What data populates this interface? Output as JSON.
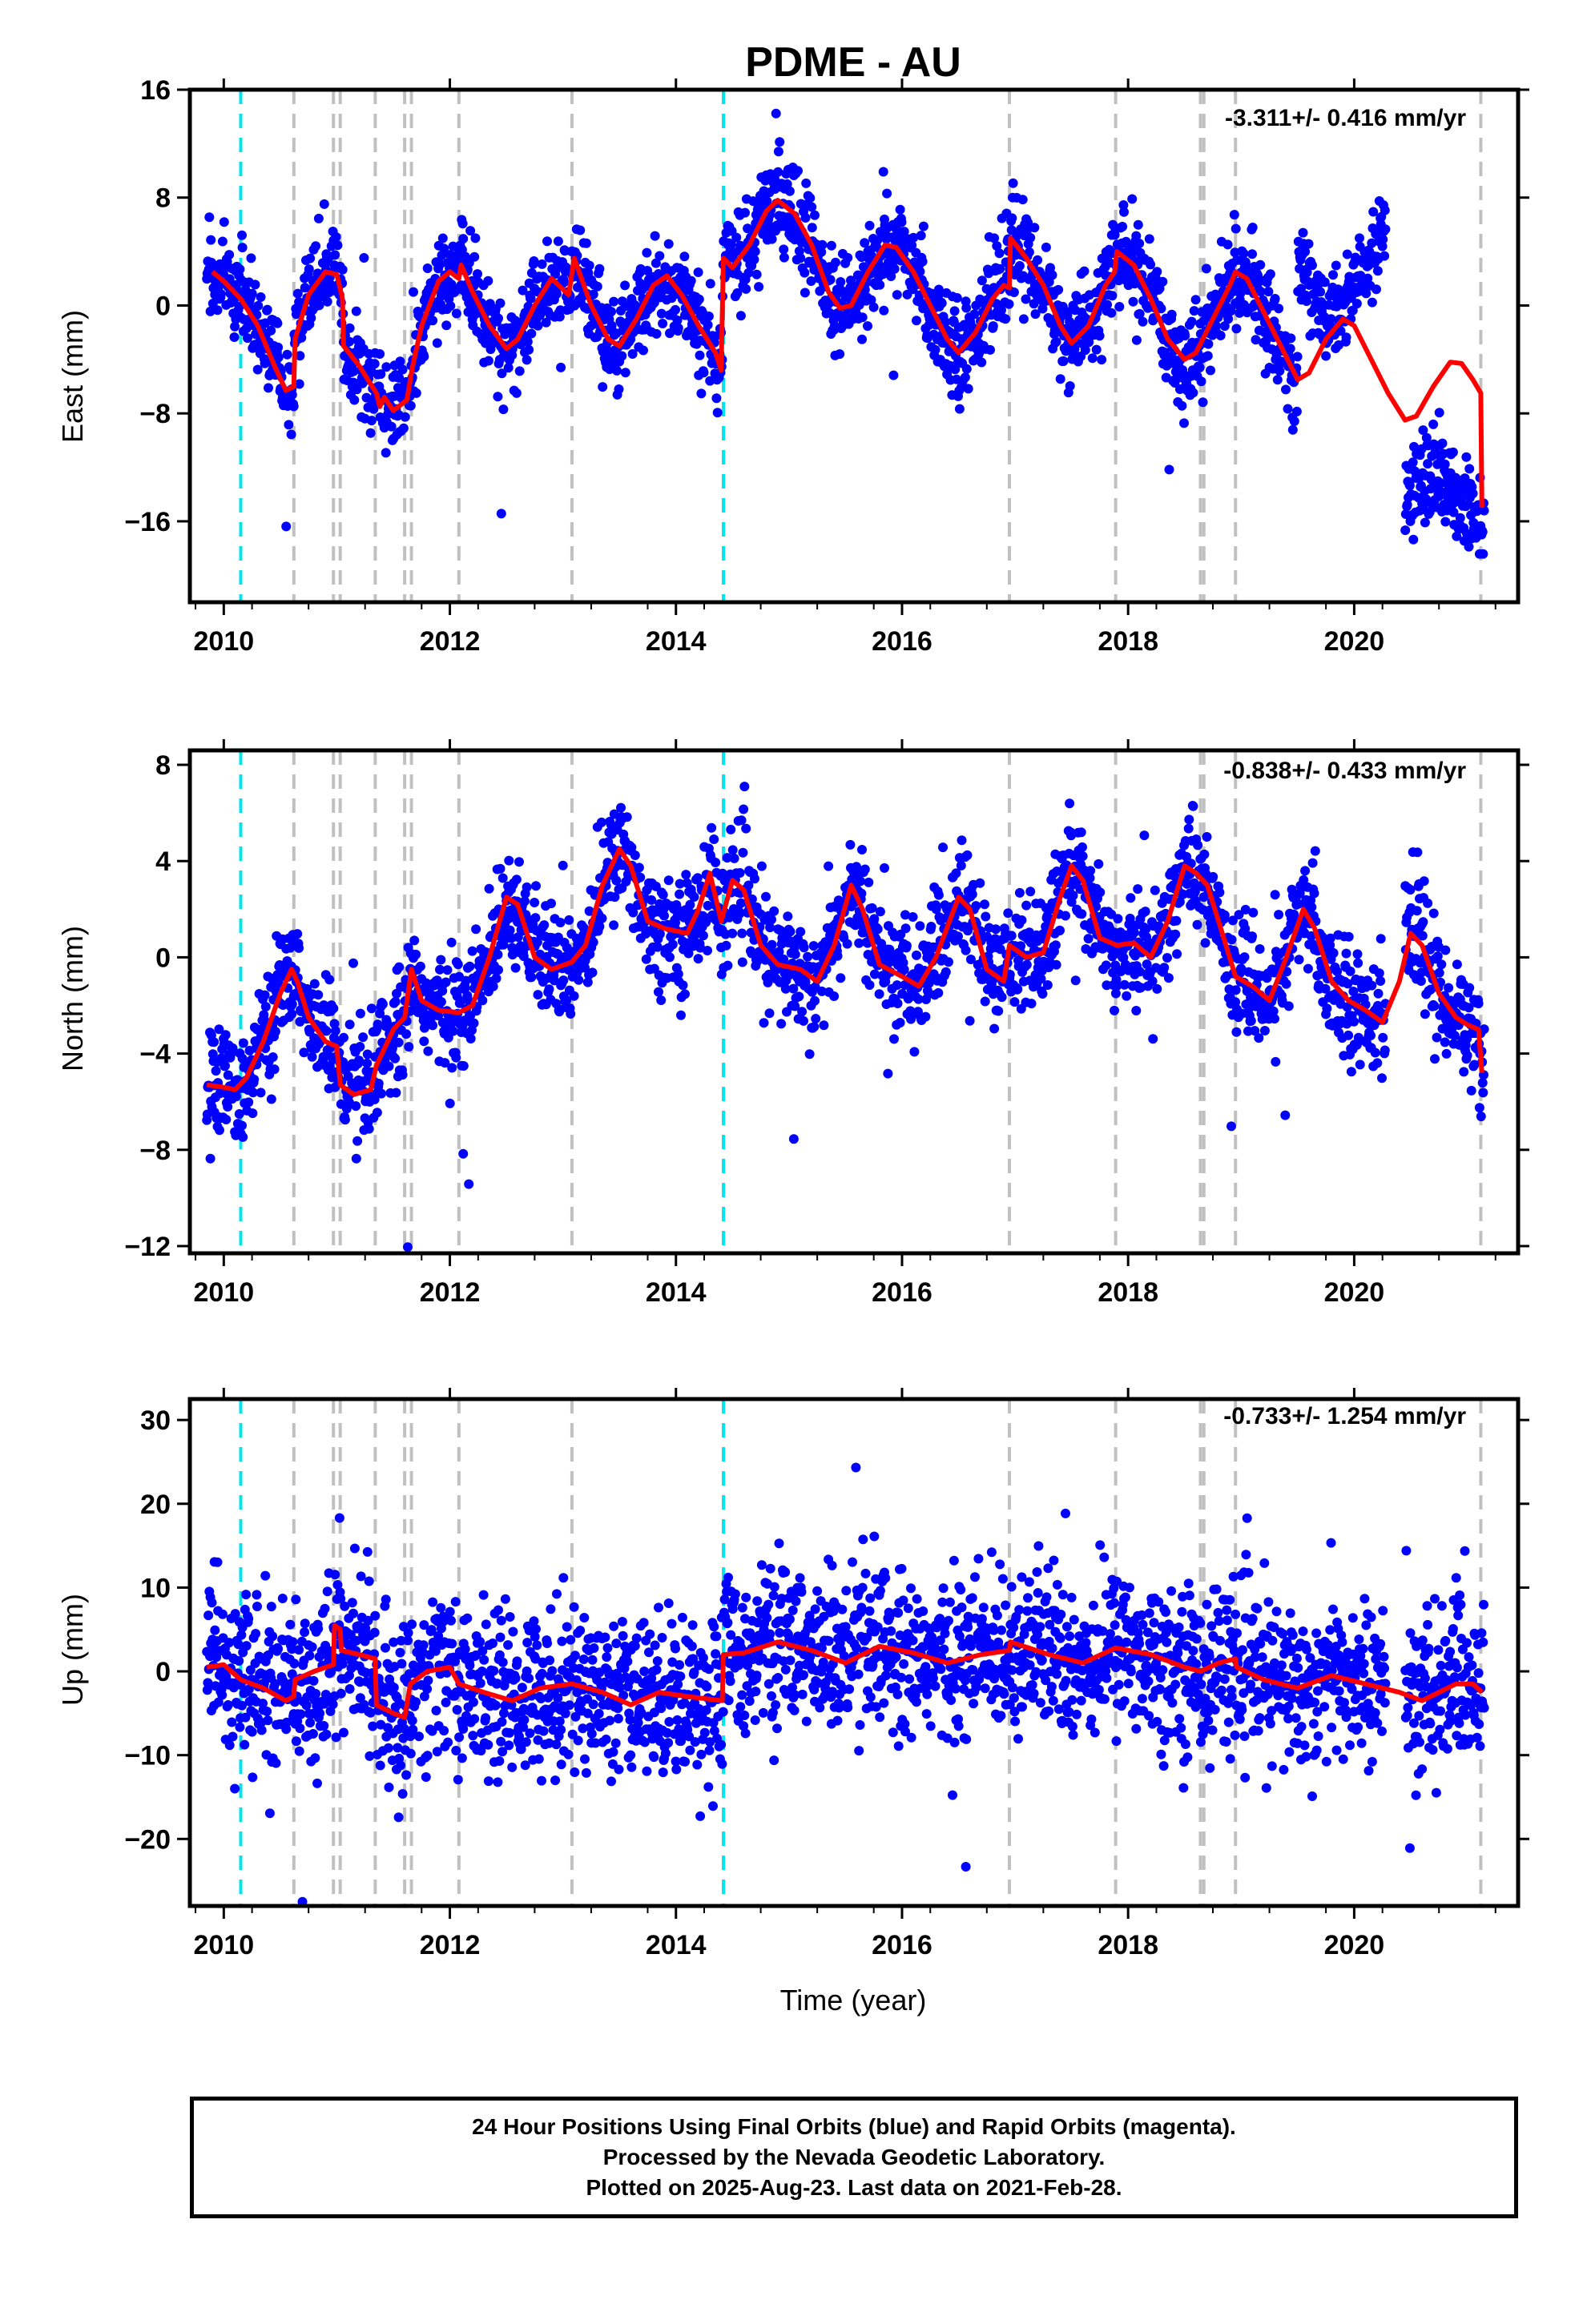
{
  "figure": {
    "title": "PDME - AU",
    "xlabel": "Time (year)",
    "footer": [
      "24 Hour Positions Using Final Orbits (blue) and Rapid Orbits (magenta).",
      "Processed by the Nevada Geodetic Laboratory.",
      "Plotted on 2025-Aug-23. Last data on 2021-Feb-28."
    ],
    "colors": {
      "final_orbits": "#0000ff",
      "model": "#ff0000",
      "antenna_change": "#00e5ee",
      "event": "#c0c0c0"
    }
  },
  "chart_data": [
    {
      "type": "scatter",
      "component": "east",
      "ylabel": "East (mm)",
      "rate": "-3.311+/- 0.416 mm/yr",
      "xlim": [
        2009.7,
        2021.45
      ],
      "ylim": [
        -22,
        16
      ],
      "yticks": [
        -16,
        -8,
        0,
        8,
        16
      ],
      "xticks": [
        2010,
        2012,
        2014,
        2016,
        2018,
        2020
      ],
      "model": [
        [
          2009.9,
          2.5
        ],
        [
          2010.0,
          1.8
        ],
        [
          2010.15,
          0.5
        ],
        [
          2010.3,
          -1.5
        ],
        [
          2010.45,
          -4.5
        ],
        [
          2010.55,
          -6.3
        ],
        [
          2010.62,
          -6.0
        ],
        [
          2010.63,
          -2.5
        ],
        [
          2010.75,
          0.8
        ],
        [
          2010.9,
          2.5
        ],
        [
          2011.0,
          2.3
        ],
        [
          2011.05,
          0.5
        ],
        [
          2011.06,
          -3.0
        ],
        [
          2011.2,
          -4.5
        ],
        [
          2011.35,
          -6.5
        ],
        [
          2011.38,
          -7.5
        ],
        [
          2011.42,
          -6.8
        ],
        [
          2011.5,
          -7.8
        ],
        [
          2011.62,
          -7.0
        ],
        [
          2011.67,
          -4.5
        ],
        [
          2011.75,
          -1.5
        ],
        [
          2011.9,
          1.8
        ],
        [
          2012.0,
          2.5
        ],
        [
          2012.08,
          2.0
        ],
        [
          2012.1,
          3.0
        ],
        [
          2012.2,
          1.0
        ],
        [
          2012.35,
          -1.5
        ],
        [
          2012.5,
          -3.2
        ],
        [
          2012.6,
          -2.5
        ],
        [
          2012.75,
          0.0
        ],
        [
          2012.9,
          2.0
        ],
        [
          2013.05,
          0.8
        ],
        [
          2013.1,
          3.5
        ],
        [
          2013.25,
          0.0
        ],
        [
          2013.4,
          -2.5
        ],
        [
          2013.5,
          -3.0
        ],
        [
          2013.65,
          -1.0
        ],
        [
          2013.8,
          1.5
        ],
        [
          2013.92,
          2.2
        ],
        [
          2014.05,
          0.8
        ],
        [
          2014.2,
          -1.5
        ],
        [
          2014.35,
          -3.5
        ],
        [
          2014.4,
          -4.8
        ],
        [
          2014.42,
          3.5
        ],
        [
          2014.5,
          2.8
        ],
        [
          2014.65,
          4.5
        ],
        [
          2014.8,
          7.0
        ],
        [
          2014.9,
          7.8
        ],
        [
          2015.05,
          6.8
        ],
        [
          2015.2,
          4.5
        ],
        [
          2015.35,
          1.0
        ],
        [
          2015.45,
          -0.2
        ],
        [
          2015.55,
          0.0
        ],
        [
          2015.7,
          2.5
        ],
        [
          2015.85,
          4.5
        ],
        [
          2015.95,
          4.3
        ],
        [
          2016.1,
          2.5
        ],
        [
          2016.25,
          0.0
        ],
        [
          2016.4,
          -2.5
        ],
        [
          2016.5,
          -3.5
        ],
        [
          2016.65,
          -2.0
        ],
        [
          2016.8,
          0.5
        ],
        [
          2016.9,
          1.5
        ],
        [
          2016.95,
          1.3
        ],
        [
          2016.96,
          5.0
        ],
        [
          2017.1,
          3.5
        ],
        [
          2017.25,
          1.5
        ],
        [
          2017.4,
          -1.5
        ],
        [
          2017.5,
          -2.8
        ],
        [
          2017.65,
          -1.5
        ],
        [
          2017.8,
          1.5
        ],
        [
          2017.88,
          2.5
        ],
        [
          2017.9,
          4.0
        ],
        [
          2018.05,
          3.0
        ],
        [
          2018.2,
          0.5
        ],
        [
          2018.35,
          -2.5
        ],
        [
          2018.5,
          -4.0
        ],
        [
          2018.6,
          -3.5
        ],
        [
          2018.75,
          -1.0
        ],
        [
          2018.9,
          1.5
        ],
        [
          2018.95,
          2.5
        ],
        [
          2019.05,
          2.0
        ],
        [
          2019.2,
          -0.5
        ],
        [
          2019.35,
          -3.0
        ],
        [
          2019.5,
          -5.5
        ],
        [
          2019.6,
          -5.0
        ],
        [
          2019.75,
          -2.5
        ],
        [
          2019.9,
          -1.0
        ],
        [
          2020.0,
          -1.5
        ],
        [
          2020.15,
          -4.0
        ],
        [
          2020.3,
          -6.5
        ],
        [
          2020.45,
          -8.5
        ],
        [
          2020.55,
          -8.2
        ],
        [
          2020.7,
          -6.0
        ],
        [
          2020.85,
          -4.2
        ],
        [
          2020.95,
          -4.3
        ],
        [
          2021.05,
          -5.5
        ],
        [
          2021.12,
          -6.5
        ],
        [
          2021.13,
          -15.0
        ]
      ],
      "steps_cyan": [
        2010.15,
        2014.42
      ],
      "steps_gray": [
        2010.62,
        2010.97,
        2011.03,
        2011.34,
        2011.6,
        2011.66,
        2012.08,
        2013.08,
        2016.95,
        2017.89,
        2018.64,
        2018.67,
        2018.95,
        2021.12
      ]
    },
    {
      "type": "scatter",
      "component": "north",
      "ylabel": "North (mm)",
      "rate": "-0.838+/- 0.433 mm/yr",
      "xlim": [
        2009.7,
        2021.45
      ],
      "ylim": [
        -12.3,
        8.6
      ],
      "yticks": [
        -12,
        -8,
        -4,
        0,
        4,
        8
      ],
      "xticks": [
        2010,
        2012,
        2014,
        2016,
        2018,
        2020
      ],
      "model": [
        [
          2009.85,
          -5.3
        ],
        [
          2010.0,
          -5.4
        ],
        [
          2010.1,
          -5.5
        ],
        [
          2010.2,
          -5.0
        ],
        [
          2010.35,
          -3.5
        ],
        [
          2010.5,
          -1.5
        ],
        [
          2010.6,
          -0.5
        ],
        [
          2010.65,
          -1.0
        ],
        [
          2010.75,
          -2.5
        ],
        [
          2010.9,
          -3.5
        ],
        [
          2011.0,
          -3.7
        ],
        [
          2011.03,
          -5.3
        ],
        [
          2011.15,
          -5.7
        ],
        [
          2011.3,
          -5.5
        ],
        [
          2011.35,
          -4.5
        ],
        [
          2011.5,
          -3.0
        ],
        [
          2011.6,
          -2.5
        ],
        [
          2011.66,
          -0.5
        ],
        [
          2011.75,
          -1.8
        ],
        [
          2011.9,
          -2.2
        ],
        [
          2012.08,
          -2.3
        ],
        [
          2012.2,
          -2.0
        ],
        [
          2012.35,
          0.0
        ],
        [
          2012.5,
          2.5
        ],
        [
          2012.6,
          2.2
        ],
        [
          2012.75,
          0.0
        ],
        [
          2012.9,
          -0.5
        ],
        [
          2013.08,
          -0.2
        ],
        [
          2013.2,
          0.5
        ],
        [
          2013.35,
          3.0
        ],
        [
          2013.5,
          4.5
        ],
        [
          2013.6,
          3.8
        ],
        [
          2013.75,
          1.5
        ],
        [
          2013.9,
          1.2
        ],
        [
          2014.1,
          1.0
        ],
        [
          2014.2,
          2.0
        ],
        [
          2014.3,
          3.5
        ],
        [
          2014.4,
          1.5
        ],
        [
          2014.5,
          3.2
        ],
        [
          2014.6,
          2.8
        ],
        [
          2014.75,
          0.5
        ],
        [
          2014.9,
          -0.3
        ],
        [
          2015.1,
          -0.5
        ],
        [
          2015.25,
          -1.0
        ],
        [
          2015.4,
          0.5
        ],
        [
          2015.55,
          3.0
        ],
        [
          2015.65,
          2.0
        ],
        [
          2015.8,
          -0.3
        ],
        [
          2016.0,
          -0.8
        ],
        [
          2016.15,
          -1.2
        ],
        [
          2016.3,
          0.0
        ],
        [
          2016.5,
          2.5
        ],
        [
          2016.6,
          2.0
        ],
        [
          2016.75,
          -0.5
        ],
        [
          2016.9,
          -1.0
        ],
        [
          2016.95,
          0.5
        ],
        [
          2017.1,
          0.0
        ],
        [
          2017.25,
          0.2
        ],
        [
          2017.4,
          2.5
        ],
        [
          2017.5,
          3.8
        ],
        [
          2017.6,
          3.2
        ],
        [
          2017.75,
          0.8
        ],
        [
          2017.9,
          0.5
        ],
        [
          2018.05,
          0.6
        ],
        [
          2018.2,
          0.0
        ],
        [
          2018.35,
          1.5
        ],
        [
          2018.5,
          3.8
        ],
        [
          2018.6,
          3.5
        ],
        [
          2018.7,
          3.0
        ],
        [
          2018.8,
          1.5
        ],
        [
          2018.95,
          -0.8
        ],
        [
          2019.1,
          -1.2
        ],
        [
          2019.25,
          -1.8
        ],
        [
          2019.4,
          0.0
        ],
        [
          2019.55,
          2.0
        ],
        [
          2019.65,
          1.2
        ],
        [
          2019.8,
          -1.0
        ],
        [
          2019.95,
          -1.8
        ],
        [
          2020.1,
          -2.2
        ],
        [
          2020.25,
          -2.7
        ],
        [
          2020.4,
          -1.0
        ],
        [
          2020.5,
          1.0
        ],
        [
          2020.6,
          0.5
        ],
        [
          2020.75,
          -1.5
        ],
        [
          2020.9,
          -2.5
        ],
        [
          2021.0,
          -2.8
        ],
        [
          2021.1,
          -3.0
        ],
        [
          2021.13,
          -4.8
        ]
      ],
      "steps_cyan": [
        2010.15,
        2014.42
      ],
      "steps_gray": [
        2010.62,
        2010.97,
        2011.03,
        2011.34,
        2011.6,
        2011.66,
        2012.08,
        2013.08,
        2016.95,
        2017.89,
        2018.64,
        2018.67,
        2018.95,
        2021.12
      ]
    },
    {
      "type": "scatter",
      "component": "up",
      "ylabel": "Up (mm)",
      "rate": "-0.733+/- 1.254 mm/yr",
      "xlim": [
        2009.7,
        2021.45
      ],
      "ylim": [
        -28,
        32.5
      ],
      "yticks": [
        -20,
        -10,
        0,
        10,
        20,
        30
      ],
      "xticks": [
        2010,
        2012,
        2014,
        2016,
        2018,
        2020
      ],
      "model": [
        [
          2009.85,
          0.5
        ],
        [
          2010.0,
          0.8
        ],
        [
          2010.15,
          -1.0
        ],
        [
          2010.35,
          -2.0
        ],
        [
          2010.55,
          -3.5
        ],
        [
          2010.62,
          -3.0
        ],
        [
          2010.63,
          -1.0
        ],
        [
          2010.8,
          0.0
        ],
        [
          2010.97,
          0.8
        ],
        [
          2010.98,
          5.5
        ],
        [
          2011.03,
          5.0
        ],
        [
          2011.04,
          2.5
        ],
        [
          2011.2,
          2.0
        ],
        [
          2011.34,
          1.5
        ],
        [
          2011.35,
          -4.0
        ],
        [
          2011.5,
          -5.0
        ],
        [
          2011.6,
          -5.5
        ],
        [
          2011.65,
          -1.5
        ],
        [
          2011.8,
          0.0
        ],
        [
          2012.0,
          0.5
        ],
        [
          2012.08,
          -1.5
        ],
        [
          2012.3,
          -2.5
        ],
        [
          2012.55,
          -3.5
        ],
        [
          2012.8,
          -2.0
        ],
        [
          2013.08,
          -1.5
        ],
        [
          2013.35,
          -2.5
        ],
        [
          2013.6,
          -4.0
        ],
        [
          2013.85,
          -2.5
        ],
        [
          2014.1,
          -3.0
        ],
        [
          2014.41,
          -3.5
        ],
        [
          2014.42,
          2.0
        ],
        [
          2014.6,
          2.2
        ],
        [
          2014.9,
          3.5
        ],
        [
          2015.2,
          2.5
        ],
        [
          2015.5,
          1.0
        ],
        [
          2015.8,
          3.0
        ],
        [
          2016.1,
          2.2
        ],
        [
          2016.4,
          1.0
        ],
        [
          2016.7,
          2.0
        ],
        [
          2016.95,
          2.5
        ],
        [
          2016.96,
          3.5
        ],
        [
          2017.3,
          2.0
        ],
        [
          2017.6,
          1.0
        ],
        [
          2017.89,
          2.8
        ],
        [
          2018.2,
          2.0
        ],
        [
          2018.5,
          0.5
        ],
        [
          2018.64,
          0.0
        ],
        [
          2018.8,
          1.0
        ],
        [
          2018.95,
          1.5
        ],
        [
          2018.96,
          0.5
        ],
        [
          2019.2,
          -1.0
        ],
        [
          2019.5,
          -2.0
        ],
        [
          2019.8,
          -0.5
        ],
        [
          2020.1,
          -1.5
        ],
        [
          2020.4,
          -2.5
        ],
        [
          2020.6,
          -3.5
        ],
        [
          2020.9,
          -1.5
        ],
        [
          2021.05,
          -1.5
        ],
        [
          2021.13,
          -2.5
        ]
      ],
      "steps_cyan": [
        2010.15,
        2014.42
      ],
      "steps_gray": [
        2010.62,
        2010.97,
        2011.03,
        2011.34,
        2011.6,
        2011.66,
        2012.08,
        2013.08,
        2016.95,
        2017.89,
        2018.64,
        2018.67,
        2018.95,
        2021.12
      ]
    }
  ]
}
